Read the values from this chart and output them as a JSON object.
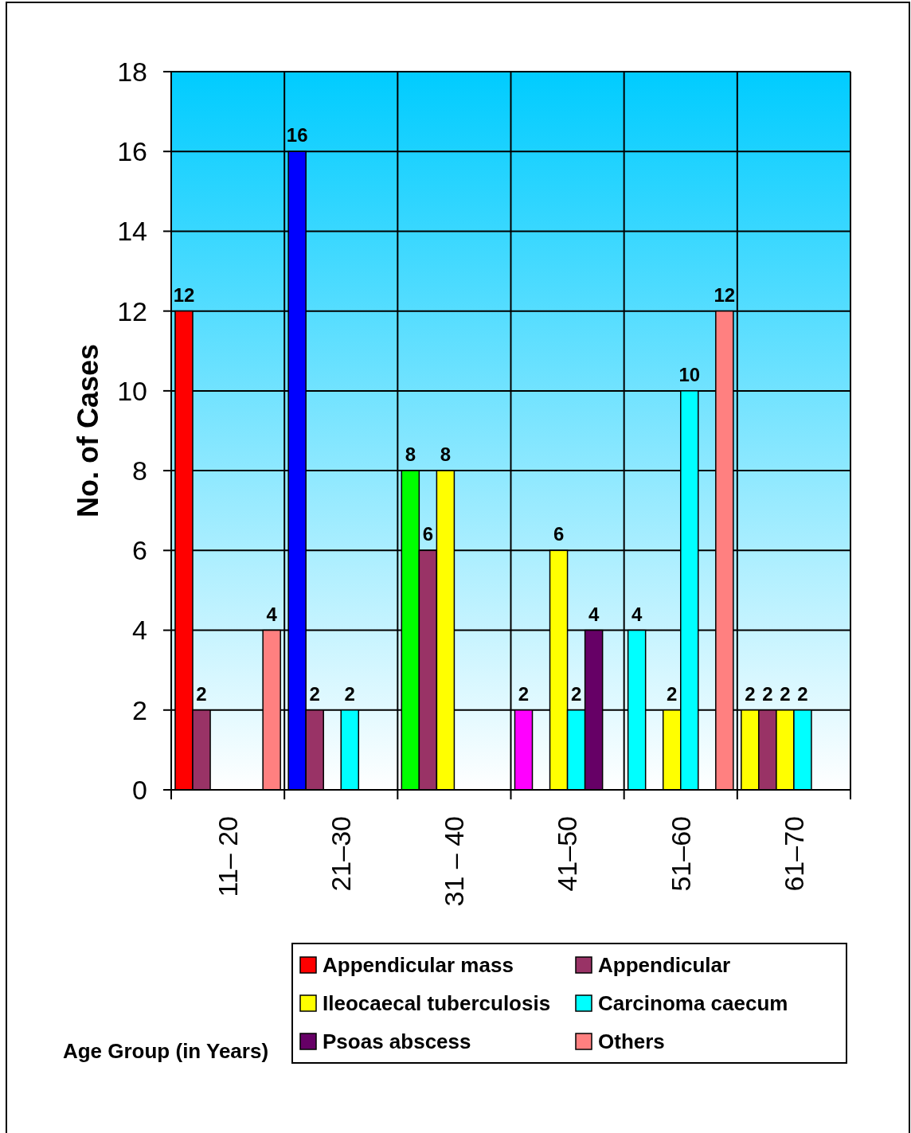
{
  "chart_data": {
    "type": "bar",
    "annotations": [
      "Age Group (in Years)"
    ],
    "ylabel": "No. of Cases",
    "categories": [
      "11– 20",
      "21–30",
      "31 – 40",
      "41–50",
      "51–60",
      "61–70"
    ],
    "series": [
      {
        "name": "Appendicular mass",
        "color": "#ff0000",
        "colors": [
          "#ff0000",
          "#0000ff",
          "#00ff00",
          "#ff00ff",
          "#00ffff",
          "#ffff00"
        ],
        "values": [
          12,
          16,
          8,
          2,
          4,
          2
        ]
      },
      {
        "name": "Appendicular",
        "color": "#993366",
        "values": [
          2,
          2,
          6,
          null,
          null,
          2
        ]
      },
      {
        "name": "Ileocaecal tuberculosis",
        "color": "#ffff00",
        "values": [
          null,
          null,
          8,
          6,
          2,
          2
        ]
      },
      {
        "name": "Carcinoma caecum",
        "color": "#00ffff",
        "values": [
          null,
          2,
          null,
          2,
          10,
          2
        ]
      },
      {
        "name": "Psoas abscess",
        "color": "#660066",
        "values": [
          null,
          null,
          null,
          4,
          null,
          null
        ]
      },
      {
        "name": "Others",
        "color": "#ff8080",
        "values": [
          4,
          null,
          null,
          null,
          12,
          null
        ]
      }
    ],
    "ylim": [
      0,
      18
    ],
    "yticks": [
      0,
      2,
      4,
      6,
      8,
      10,
      12,
      14,
      16,
      18
    ],
    "grid": true,
    "data_labels": true,
    "legend": "bottom"
  }
}
